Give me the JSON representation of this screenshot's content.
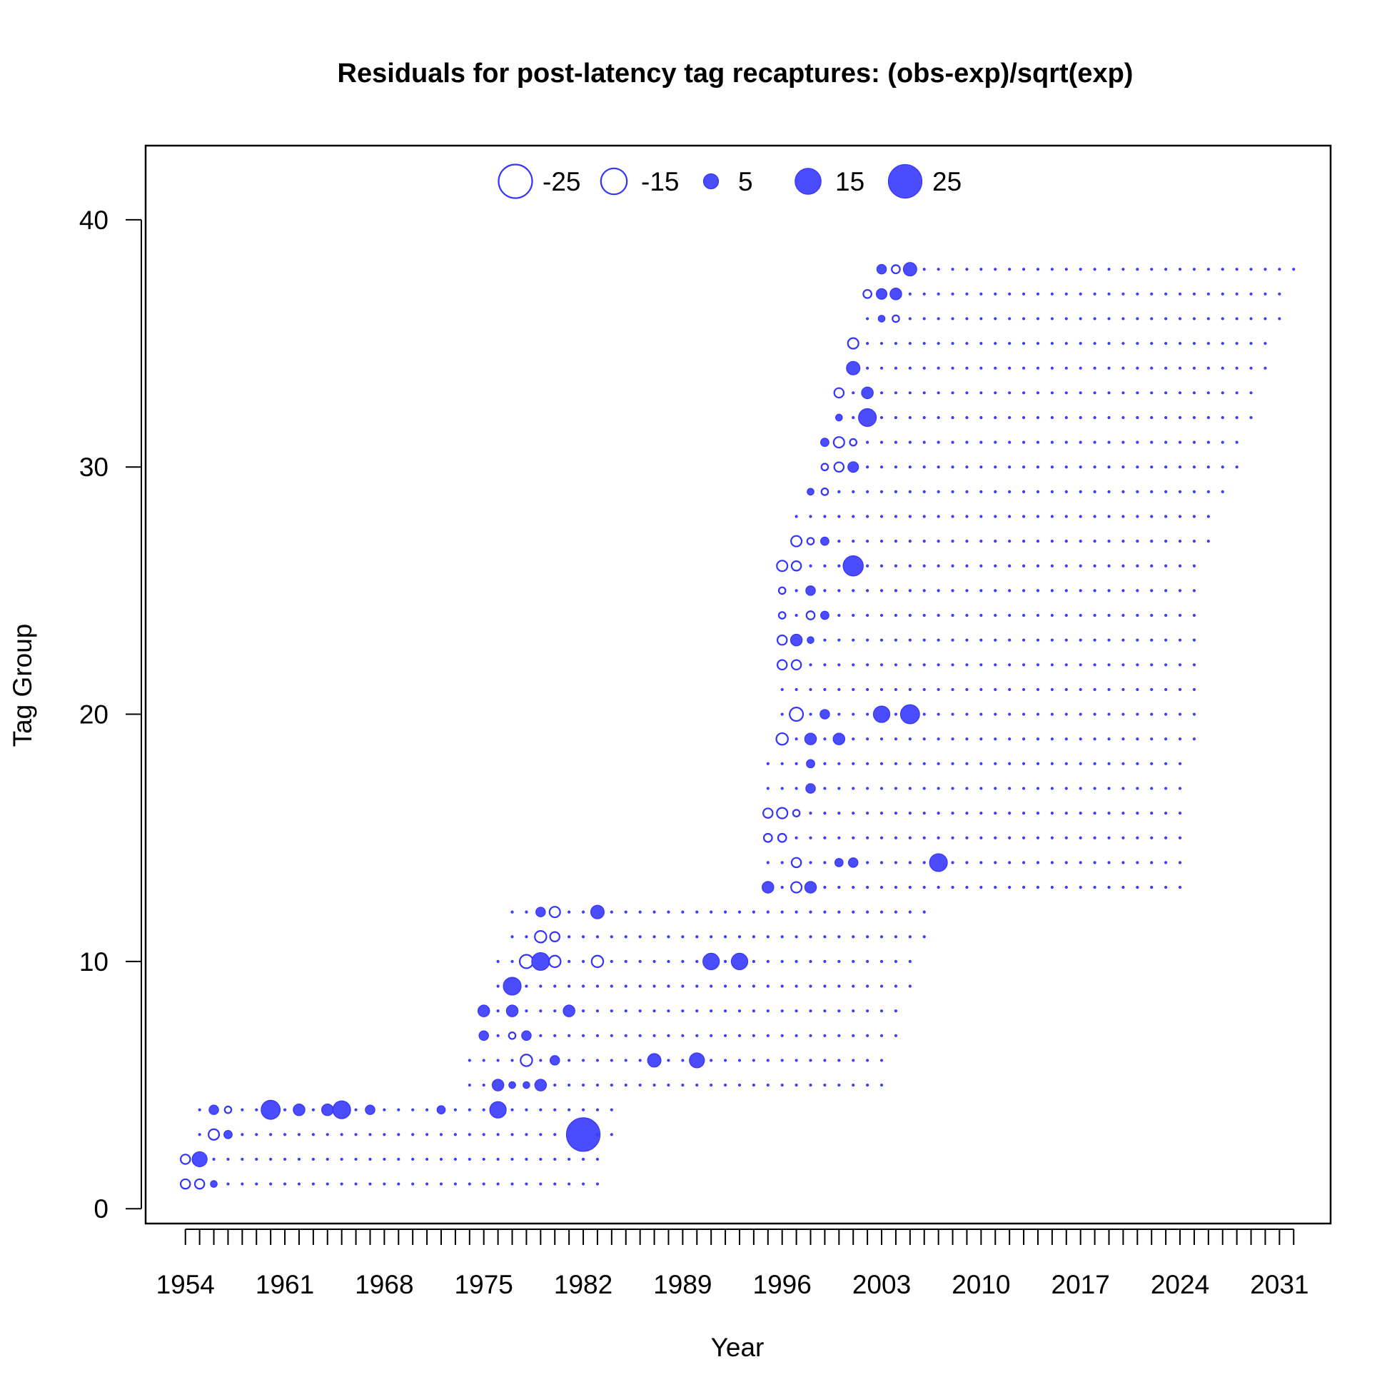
{
  "chart_data": {
    "type": "scatter",
    "subtype": "bubble",
    "title": "Residuals for post-latency tag recaptures: (obs-exp)/sqrt(exp)",
    "xlabel": "Year",
    "ylabel": "Tag Group",
    "xlim": [
      1951.2,
      2034.6
    ],
    "ylim": [
      -0.6,
      43
    ],
    "x_ticks": [
      1954,
      1961,
      1968,
      1975,
      1982,
      1989,
      1996,
      2003,
      2010,
      2017,
      2024,
      2031
    ],
    "x_minor_step": 1,
    "y_ticks": [
      0,
      10,
      20,
      30,
      40
    ],
    "grid": false,
    "legend": {
      "position": "top-center",
      "entries": [
        {
          "label": "-25",
          "value": -25
        },
        {
          "label": "-15",
          "value": -15
        },
        {
          "label": "5",
          "value": 5
        },
        {
          "label": "15",
          "value": 15
        },
        {
          "label": "25",
          "value": 25
        }
      ]
    },
    "colors": {
      "positive_fill": "#4c4cff",
      "outline": "#3333ff",
      "negative_fill": "#ffffff"
    },
    "size_encoding": "circle area proportional to |residual|; filled = positive, open = negative",
    "groups": [
      {
        "group": 1,
        "start": 1954,
        "end": 1983,
        "values": {
          "1954": -2,
          "1955": -2,
          "1956": 1
        }
      },
      {
        "group": 2,
        "start": 1954,
        "end": 1983,
        "values": {
          "1954": -2,
          "1955": 5
        }
      },
      {
        "group": 3,
        "start": 1955,
        "end": 1984,
        "values": {
          "1956": -2.5,
          "1957": 1.5,
          "1982": 25
        }
      },
      {
        "group": 4,
        "start": 1955,
        "end": 1984,
        "values": {
          "1956": 2,
          "1957": -1,
          "1960": 8,
          "1962": 3,
          "1964": 3,
          "1965": 7,
          "1967": 2,
          "1972": 1.5,
          "1976": 6
        }
      },
      {
        "group": 5,
        "start": 1974,
        "end": 2003,
        "values": {
          "1976": 3,
          "1977": 1,
          "1978": 1,
          "1979": 3
        }
      },
      {
        "group": 6,
        "start": 1974,
        "end": 2003,
        "values": {
          "1978": -3,
          "1980": 2,
          "1987": 4,
          "1990": 5
        }
      },
      {
        "group": 7,
        "start": 1975,
        "end": 2004,
        "values": {
          "1975": 2,
          "1977": -1,
          "1978": 2
        }
      },
      {
        "group": 8,
        "start": 1975,
        "end": 2004,
        "values": {
          "1975": 3,
          "1977": 3,
          "1981": 3
        }
      },
      {
        "group": 9,
        "start": 1976,
        "end": 2005,
        "values": {
          "1977": 7
        }
      },
      {
        "group": 10,
        "start": 1976,
        "end": 2005,
        "values": {
          "1978": -4,
          "1979": 7,
          "1980": -3,
          "1983": -3,
          "1991": 6,
          "1993": 6
        }
      },
      {
        "group": 11,
        "start": 1977,
        "end": 2006,
        "values": {
          "1979": -3,
          "1980": -2
        }
      },
      {
        "group": 12,
        "start": 1977,
        "end": 2006,
        "values": {
          "1979": 2,
          "1980": -2.5,
          "1983": 4
        }
      },
      {
        "group": 13,
        "start": 1995,
        "end": 2024,
        "values": {
          "1995": 3,
          "1997": -2.5,
          "1998": 3
        }
      },
      {
        "group": 14,
        "start": 1995,
        "end": 2024,
        "values": {
          "1997": -2,
          "2000": 1.5,
          "2001": 2,
          "2007": 7
        }
      },
      {
        "group": 15,
        "start": 1995,
        "end": 2024,
        "values": {
          "1995": -1.5,
          "1996": -1.5
        }
      },
      {
        "group": 16,
        "start": 1995,
        "end": 2024,
        "values": {
          "1995": -2,
          "1996": -2.5,
          "1997": -1
        }
      },
      {
        "group": 17,
        "start": 1995,
        "end": 2024,
        "values": {
          "1998": 2
        }
      },
      {
        "group": 18,
        "start": 1995,
        "end": 2024,
        "values": {
          "1998": 1.5
        }
      },
      {
        "group": 19,
        "start": 1996,
        "end": 2025,
        "values": {
          "1996": -3,
          "1998": 3,
          "2000": 3
        }
      },
      {
        "group": 20,
        "start": 1996,
        "end": 2025,
        "values": {
          "1997": -4,
          "1999": 2,
          "2003": 6,
          "2005": 8
        }
      },
      {
        "group": 21,
        "start": 1996,
        "end": 2025,
        "values": {}
      },
      {
        "group": 22,
        "start": 1996,
        "end": 2025,
        "values": {
          "1996": -2,
          "1997": -2
        }
      },
      {
        "group": 23,
        "start": 1996,
        "end": 2025,
        "values": {
          "1996": -2,
          "1997": 3,
          "1998": 1
        }
      },
      {
        "group": 24,
        "start": 1996,
        "end": 2025,
        "values": {
          "1996": -1,
          "1998": -1.5,
          "1999": 1.5
        }
      },
      {
        "group": 25,
        "start": 1996,
        "end": 2025,
        "values": {
          "1996": -1,
          "1998": 2
        }
      },
      {
        "group": 26,
        "start": 1996,
        "end": 2025,
        "values": {
          "1996": -2.5,
          "1997": -2,
          "2001": 9
        }
      },
      {
        "group": 27,
        "start": 1997,
        "end": 2026,
        "values": {
          "1997": -2.5,
          "1998": -1,
          "1999": 1.5
        }
      },
      {
        "group": 28,
        "start": 1997,
        "end": 2026,
        "values": {}
      },
      {
        "group": 29,
        "start": 1998,
        "end": 2027,
        "values": {
          "1998": 1,
          "1999": -1
        }
      },
      {
        "group": 30,
        "start": 1999,
        "end": 2028,
        "values": {
          "1999": -1,
          "2000": -2,
          "2001": 2.5
        }
      },
      {
        "group": 31,
        "start": 1999,
        "end": 2028,
        "values": {
          "1999": 1.5,
          "2000": -2.5,
          "2001": -1
        }
      },
      {
        "group": 32,
        "start": 2000,
        "end": 2029,
        "values": {
          "2000": 1,
          "2002": 7
        }
      },
      {
        "group": 33,
        "start": 2000,
        "end": 2029,
        "values": {
          "2000": -2,
          "2002": 3
        }
      },
      {
        "group": 34,
        "start": 2001,
        "end": 2030,
        "values": {
          "2001": 4
        }
      },
      {
        "group": 35,
        "start": 2001,
        "end": 2030,
        "values": {
          "2001": -2.5
        }
      },
      {
        "group": 36,
        "start": 2002,
        "end": 2031,
        "values": {
          "2003": 1,
          "2004": -1
        }
      },
      {
        "group": 37,
        "start": 2002,
        "end": 2031,
        "values": {
          "2002": -1.5,
          "2003": 2.5,
          "2004": 3
        }
      },
      {
        "group": 38,
        "start": 2003,
        "end": 2032,
        "values": {
          "2003": 2,
          "2004": -1.5,
          "2005": 4
        }
      }
    ]
  }
}
